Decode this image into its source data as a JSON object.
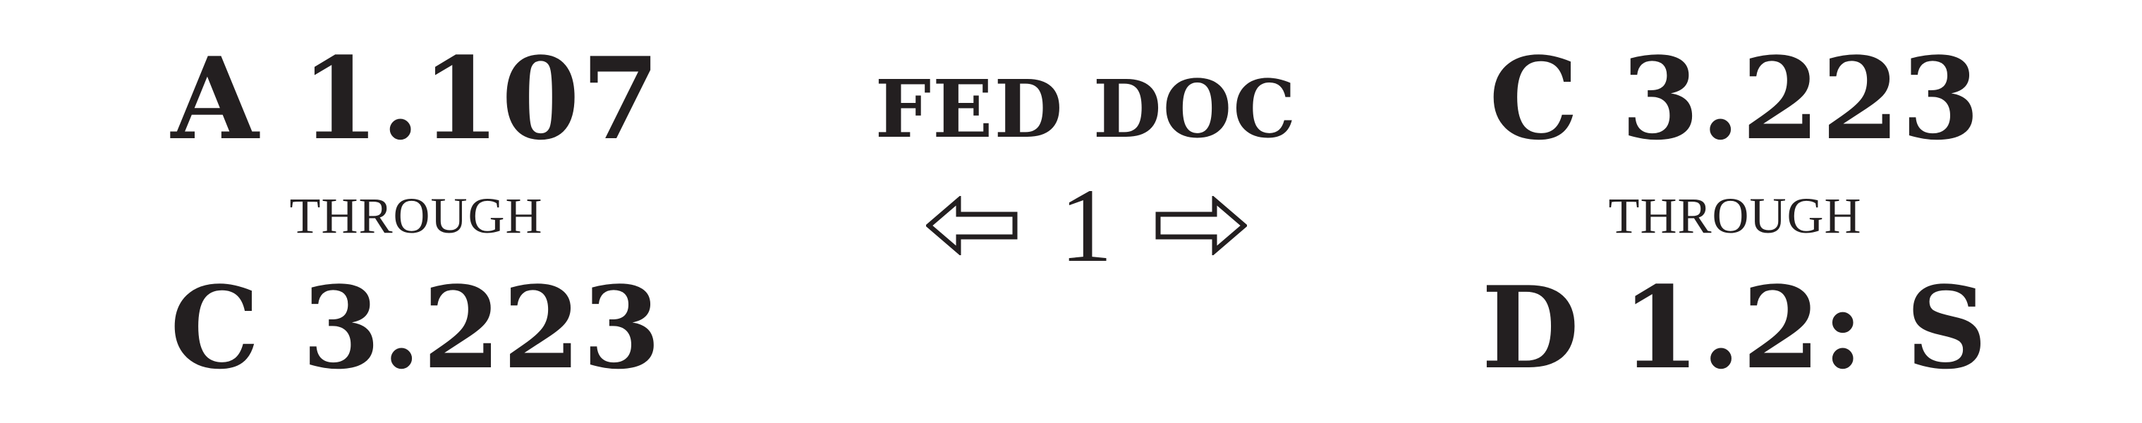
{
  "left": {
    "start": "A 1.107",
    "through": "THROUGH",
    "end": "C 3.223"
  },
  "center": {
    "title": "FED DOC",
    "shelf_number": "1",
    "left_arrow_icon": "hollow-arrow-left-icon",
    "right_arrow_icon": "hollow-arrow-right-icon"
  },
  "right": {
    "start": "C 3.223",
    "through": "THROUGH",
    "end": "D 1.2: S"
  },
  "colors": {
    "ink": "#231f20",
    "background": "#ffffff"
  }
}
